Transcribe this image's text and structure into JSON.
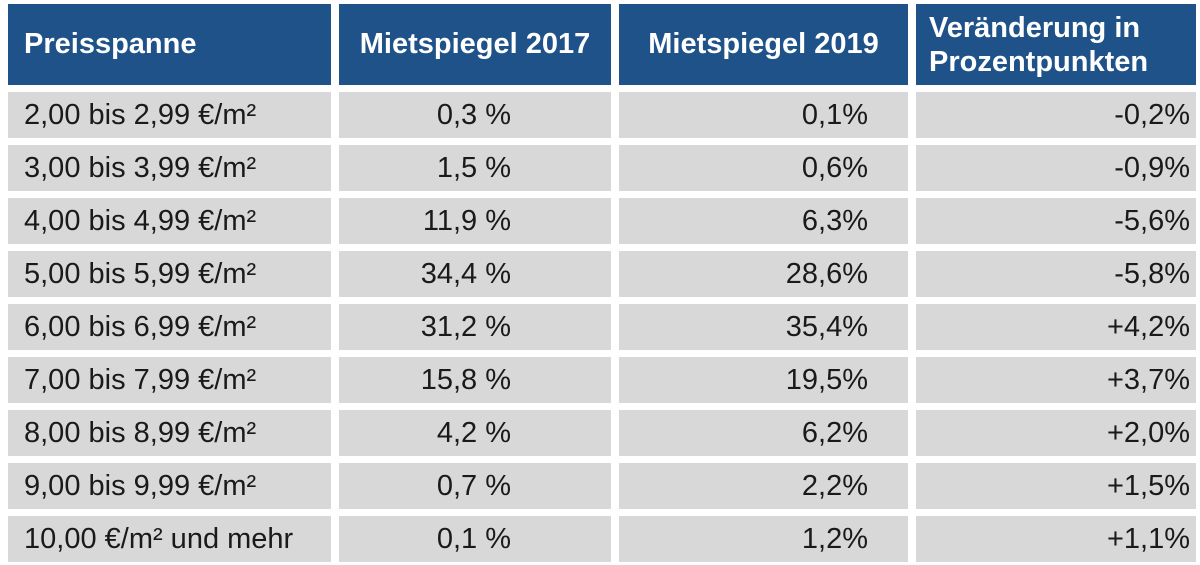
{
  "colors": {
    "header_bg": "#1e5288",
    "header_text": "#ffffff",
    "row_bg": "#d8d8d8",
    "body_text": "#1a1a1a",
    "page_bg": "#ffffff"
  },
  "table": {
    "headers": [
      "Preisspanne",
      "Mietspiegel 2017",
      "Mietspiegel 2019",
      "Veränderung in Prozentpunkten"
    ],
    "header4_lines": [
      "Veränderung in",
      "Prozentpunkten"
    ],
    "rows": [
      {
        "range": "2,00 bis 2,99 €/m²",
        "ms2017": "0,3 %",
        "ms2019": "0,1%",
        "change": "-0,2%"
      },
      {
        "range": "3,00 bis 3,99 €/m²",
        "ms2017": "1,5 %",
        "ms2019": "0,6%",
        "change": "-0,9%"
      },
      {
        "range": "4,00 bis 4,99 €/m²",
        "ms2017": "11,9 %",
        "ms2019": "6,3%",
        "change": "-5,6%"
      },
      {
        "range": "5,00 bis 5,99 €/m²",
        "ms2017": "34,4 %",
        "ms2019": "28,6%",
        "change": "-5,8%"
      },
      {
        "range": "6,00 bis 6,99 €/m²",
        "ms2017": "31,2 %",
        "ms2019": "35,4%",
        "change": "+4,2%"
      },
      {
        "range": "7,00 bis 7,99 €/m²",
        "ms2017": "15,8 %",
        "ms2019": "19,5%",
        "change": "+3,7%"
      },
      {
        "range": "8,00 bis 8,99 €/m²",
        "ms2017": "4,2 %",
        "ms2019": "6,2%",
        "change": "+2,0%"
      },
      {
        "range": "9,00 bis 9,99 €/m²",
        "ms2017": "0,7 %",
        "ms2019": "2,2%",
        "change": "+1,5%"
      },
      {
        "range": "10,00 €/m² und mehr",
        "ms2017": "0,1 %",
        "ms2019": "1,2%",
        "change": "+1,1%"
      }
    ]
  },
  "chart_data": {
    "type": "table",
    "title": "",
    "columns": [
      "Preisspanne",
      "Mietspiegel 2017",
      "Mietspiegel 2019",
      "Veränderung in Prozentpunkten"
    ],
    "categories": [
      "2,00 bis 2,99 €/m²",
      "3,00 bis 3,99 €/m²",
      "4,00 bis 4,99 €/m²",
      "5,00 bis 5,99 €/m²",
      "6,00 bis 6,99 €/m²",
      "7,00 bis 7,99 €/m²",
      "8,00 bis 8,99 €/m²",
      "9,00 bis 9,99 €/m²",
      "10,00 €/m² und mehr"
    ],
    "series": [
      {
        "name": "Mietspiegel 2017",
        "values": [
          0.3,
          1.5,
          11.9,
          34.4,
          31.2,
          15.8,
          4.2,
          0.7,
          0.1
        ]
      },
      {
        "name": "Mietspiegel 2019",
        "values": [
          0.1,
          0.6,
          6.3,
          28.6,
          35.4,
          19.5,
          6.2,
          2.2,
          1.2
        ]
      },
      {
        "name": "Veränderung in Prozentpunkten",
        "values": [
          -0.2,
          -0.9,
          -5.6,
          -5.8,
          4.2,
          3.7,
          2.0,
          1.5,
          1.1
        ]
      }
    ],
    "unit": "%"
  }
}
